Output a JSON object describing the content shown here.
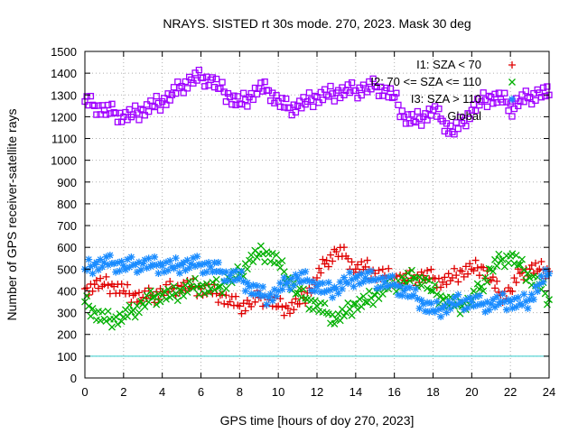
{
  "chart_data": {
    "type": "scatter",
    "title": "NRAYS. SISTED rt 30s mode. 270, 2023. Mask 30 deg",
    "xlabel": "GPS time [hours of doy 270, 2023]",
    "ylabel": "Number of GPS receiver-satellite rays",
    "xlim": [
      0,
      24
    ],
    "ylim": [
      0,
      1500
    ],
    "xticks": [
      0,
      2,
      4,
      6,
      8,
      10,
      12,
      14,
      16,
      18,
      20,
      22,
      24
    ],
    "yticks": [
      0,
      100,
      200,
      300,
      400,
      500,
      600,
      700,
      800,
      900,
      1000,
      1100,
      1200,
      1300,
      1400,
      1500
    ],
    "grid": true,
    "legend_position": "top-right",
    "threshold_line": {
      "y": 100,
      "color": "#33cccc"
    },
    "series": [
      {
        "name": "I1: SZA < 70",
        "marker": "plus",
        "color": "#e00000",
        "x": [
          0,
          0.5,
          1,
          1.5,
          2,
          2.5,
          3,
          3.5,
          4,
          4.5,
          5,
          5.5,
          6,
          6.5,
          7,
          7.5,
          8,
          8.5,
          9,
          9.5,
          10,
          10.5,
          11,
          11.5,
          12,
          12.5,
          13,
          13.5,
          14,
          14.5,
          15,
          15.5,
          16,
          16.5,
          17,
          17.5,
          18,
          18.5,
          19,
          19.5,
          20,
          20.5,
          21,
          21.5,
          22,
          22.5,
          23,
          23.5,
          24
        ],
        "y": [
          410,
          430,
          430,
          420,
          400,
          380,
          370,
          380,
          395,
          410,
          420,
          420,
          410,
          400,
          380,
          350,
          330,
          340,
          370,
          360,
          330,
          320,
          340,
          390,
          460,
          540,
          580,
          560,
          500,
          510,
          480,
          470,
          460,
          450,
          460,
          470,
          460,
          440,
          460,
          490,
          500,
          510,
          450,
          380,
          400,
          480,
          500,
          500,
          490
        ]
      },
      {
        "name": "I2: 70 <= SZA <= 110",
        "marker": "cross",
        "color": "#00b000",
        "x": [
          0,
          0.5,
          1,
          1.5,
          2,
          2.5,
          3,
          3.5,
          4,
          4.5,
          5,
          5.5,
          6,
          6.5,
          7,
          7.5,
          8,
          8.5,
          9,
          9.5,
          10,
          10.5,
          11,
          11.5,
          12,
          12.5,
          13,
          13.5,
          14,
          14.5,
          15,
          15.5,
          16,
          16.5,
          17,
          17.5,
          18,
          18.5,
          19,
          19.5,
          20,
          20.5,
          21,
          21.5,
          22,
          22.5,
          23,
          23.5,
          24
        ],
        "y": [
          350,
          300,
          270,
          270,
          280,
          310,
          340,
          370,
          380,
          380,
          400,
          420,
          420,
          410,
          420,
          450,
          480,
          540,
          570,
          570,
          530,
          460,
          390,
          360,
          330,
          300,
          270,
          300,
          340,
          350,
          380,
          410,
          430,
          450,
          460,
          450,
          400,
          360,
          340,
          330,
          360,
          420,
          500,
          540,
          560,
          520,
          460,
          430,
          360
        ]
      },
      {
        "name": "I3: SZA > 110",
        "marker": "star",
        "color": "#1a8cff",
        "x": [
          0,
          0.5,
          1,
          1.5,
          2,
          2.5,
          3,
          3.5,
          4,
          4.5,
          5,
          5.5,
          6,
          6.5,
          7,
          7.5,
          8,
          8.5,
          9,
          9.5,
          10,
          10.5,
          11,
          11.5,
          12,
          12.5,
          13,
          13.5,
          14,
          14.5,
          15,
          15.5,
          16,
          16.5,
          17,
          17.5,
          18,
          18.5,
          19,
          19.5,
          20,
          20.5,
          21,
          21.5,
          22,
          22.5,
          23,
          23.5,
          24
        ],
        "y": [
          500,
          520,
          530,
          525,
          515,
          520,
          525,
          520,
          515,
          510,
          520,
          525,
          520,
          510,
          490,
          470,
          460,
          420,
          390,
          370,
          400,
          440,
          460,
          450,
          420,
          400,
          410,
          440,
          460,
          460,
          450,
          440,
          430,
          400,
          380,
          340,
          310,
          320,
          340,
          350,
          350,
          340,
          340,
          350,
          350,
          340,
          360,
          430,
          480
        ]
      },
      {
        "name": "Global",
        "marker": "square",
        "color": "#a000ff",
        "x": [
          0,
          0.5,
          1,
          1.5,
          2,
          2.5,
          3,
          3.5,
          4,
          4.5,
          5,
          5.5,
          6,
          6.5,
          7,
          7.5,
          8,
          8.5,
          9,
          9.5,
          10,
          10.5,
          11,
          11.5,
          12,
          12.5,
          13,
          13.5,
          14,
          14.5,
          15,
          15.5,
          16,
          16.5,
          17,
          17.5,
          18,
          18.5,
          19,
          19.5,
          20,
          20.5,
          21,
          21.5,
          22,
          22.5,
          23,
          23.5,
          24
        ],
        "y": [
          1270,
          1250,
          1230,
          1220,
          1200,
          1210,
          1230,
          1250,
          1270,
          1300,
          1340,
          1370,
          1380,
          1370,
          1330,
          1290,
          1260,
          1290,
          1330,
          1320,
          1270,
          1240,
          1250,
          1270,
          1290,
          1300,
          1310,
          1320,
          1320,
          1330,
          1340,
          1320,
          1290,
          1200,
          1180,
          1200,
          1230,
          1180,
          1130,
          1170,
          1230,
          1270,
          1290,
          1280,
          1260,
          1270,
          1290,
          1310,
          1300
        ]
      }
    ]
  }
}
